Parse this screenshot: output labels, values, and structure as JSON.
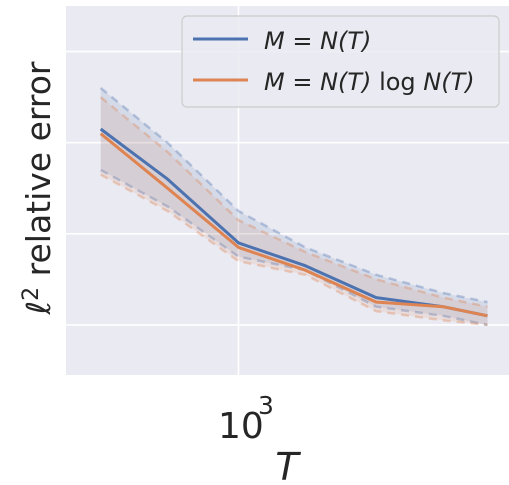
{
  "chart_data": {
    "type": "line",
    "xlabel": "T",
    "ylabel": "ℓ² relative error",
    "x_scale": "log",
    "x_tick_labels": [
      {
        "value": 1000,
        "base": "10",
        "exp": "3"
      }
    ],
    "xlim": [
      420,
      3900
    ],
    "ylim": [
      0.19,
      1.0
    ],
    "grid": true,
    "background": "#eaeaf2",
    "legend_position": "top-right",
    "x": [
      500,
      700,
      1000,
      1400,
      2000,
      2800,
      3500
    ],
    "series": [
      {
        "name": "M = N(T)",
        "color": "#4c72b0",
        "values": [
          0.73,
          0.62,
          0.48,
          0.43,
          0.36,
          0.34,
          0.32
        ],
        "lower": [
          0.64,
          0.56,
          0.45,
          0.42,
          0.34,
          0.32,
          0.3
        ],
        "upper": [
          0.82,
          0.7,
          0.55,
          0.47,
          0.41,
          0.37,
          0.35
        ]
      },
      {
        "name": "M = N(T) log N(T)",
        "color": "#dd8452",
        "values": [
          0.72,
          0.6,
          0.47,
          0.42,
          0.35,
          0.34,
          0.32
        ],
        "lower": [
          0.63,
          0.55,
          0.44,
          0.41,
          0.33,
          0.31,
          0.3
        ],
        "upper": [
          0.8,
          0.68,
          0.53,
          0.46,
          0.4,
          0.36,
          0.34
        ]
      }
    ]
  },
  "legend": {
    "items": [
      {
        "label_main": "M = N(T)",
        "label_log": "",
        "label_tail": ""
      },
      {
        "label_main": "M = N(T)",
        "label_log": "log",
        "label_tail": "N(T)"
      }
    ]
  }
}
